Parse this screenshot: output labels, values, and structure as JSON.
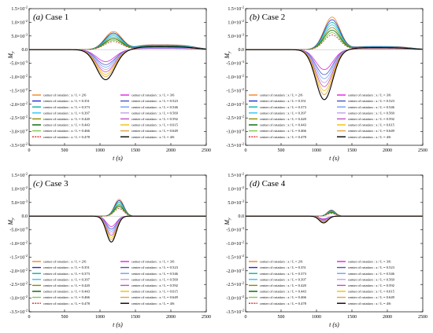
{
  "chart_data": [
    {
      "type": "line",
      "panel": "(a)",
      "title": "Case 1",
      "xlabel": "t (s)",
      "ylabel": "My",
      "xlim": [
        0,
        2500
      ],
      "ylim": [
        -0.035,
        0.015
      ],
      "amp": 0.011,
      "pos_frac": 0.6,
      "tail": 0.0018,
      "peak_t": 1080,
      "width": 130
    },
    {
      "type": "line",
      "panel": "(b)",
      "title": "Case 2",
      "xlabel": "t (s)",
      "ylabel": "My",
      "xlim": [
        0,
        2500
      ],
      "ylim": [
        -0.035,
        0.015
      ],
      "amp": 0.0183,
      "pos_frac": 0.65,
      "tail": 0.0012,
      "peak_t": 1110,
      "width": 120
    },
    {
      "type": "line",
      "panel": "(c)",
      "title": "Case 3",
      "xlabel": "t (s)",
      "ylabel": "My",
      "xlim": [
        0,
        2500
      ],
      "ylim": [
        -0.035,
        0.015
      ],
      "amp": 0.0095,
      "pos_frac": 0.65,
      "tail": 0.0,
      "peak_t": 1160,
      "width": 70
    },
    {
      "type": "line",
      "panel": "(d)",
      "title": "Case 4",
      "xlabel": "t (s)",
      "ylabel": "My",
      "xlim": [
        0,
        2500
      ],
      "ylim": [
        -0.035,
        0.015
      ],
      "amp": 0.0025,
      "pos_frac": 0.9,
      "tail": 0.0,
      "peak_t": 1100,
      "width": 60
    }
  ],
  "x_ticks": [
    0,
    500,
    1000,
    1500,
    2000,
    2500
  ],
  "y_ticks": [
    0.015,
    0.01,
    0.005,
    0,
    -0.005,
    -0.01,
    -0.015,
    -0.02,
    -0.025,
    -0.03,
    -0.035
  ],
  "y_tick_labels": [
    "1.5×10",
    "1.0×10",
    "5.0×10",
    "0.0",
    "-5.0×10",
    "-1.0×10",
    "-1.5×10",
    "-2.0×10",
    "-2.5×10",
    "-3.0×10",
    "-3.5×10"
  ],
  "y_tick_exps": [
    "-2",
    "-2",
    "-3",
    "",
    "-3",
    "-2",
    "-2",
    "-2",
    "-2",
    "-2",
    "-2"
  ],
  "legend_entries": [
    {
      "label": "center of rotation : x / L = 2/6",
      "color": "#f58220",
      "k": 1.0,
      "style": "solid",
      "col": 0
    },
    {
      "label": "center of rotation : x / L = 0.351",
      "color": "#1f2bd1",
      "k": 0.92,
      "style": "solid",
      "col": 0
    },
    {
      "label": "center of rotation : x / L = 0.373",
      "color": "#00b4a0",
      "k": 0.84,
      "style": "solid",
      "col": 0
    },
    {
      "label": "center of rotation : x / L = 0.397",
      "color": "#2ec4f0",
      "k": 0.76,
      "style": "solid",
      "col": 0
    },
    {
      "label": "center of rotation : x / L = 0.420",
      "color": "#8a8a00",
      "k": 0.68,
      "style": "solid",
      "col": 0
    },
    {
      "label": "center of rotation : x / L = 0.443",
      "color": "#006400",
      "k": 0.6,
      "style": "solid",
      "col": 0
    },
    {
      "label": "center of rotation : x / L = 0.466",
      "color": "#7ec850",
      "k": 0.52,
      "style": "solid",
      "col": 0
    },
    {
      "label": "center of rotation : x / L = 0.478",
      "color": "#d62728",
      "k": 0.45,
      "style": "dash",
      "col": 0
    },
    {
      "label": "center of rotation : x / L = 3/6",
      "color": "#e020e0",
      "k": -0.4,
      "style": "solid",
      "col": 1
    },
    {
      "label": "center of rotation : x / L = 0.523",
      "color": "#4a55c8",
      "k": -0.5,
      "style": "solid",
      "col": 1
    },
    {
      "label": "center of rotation : x / L = 0.546",
      "color": "#6aa0f0",
      "k": -0.58,
      "style": "solid",
      "col": 1
    },
    {
      "label": "center of rotation : x / L = 0.569",
      "color": "#c0a0e8",
      "k": -0.66,
      "style": "solid",
      "col": 1
    },
    {
      "label": "center of rotation : x / L = 0.592",
      "color": "#c050c0",
      "k": -0.74,
      "style": "solid",
      "col": 1
    },
    {
      "label": "center of rotation : x / L = 0.615",
      "color": "#f0c000",
      "k": -0.82,
      "style": "solid",
      "col": 1
    },
    {
      "label": "center of rotation : x / L = 0.649",
      "color": "#e0a040",
      "k": -0.9,
      "style": "solid",
      "col": 1
    },
    {
      "label": "center of rotation : x / L = 4/6",
      "color": "#000000",
      "k": -1.0,
      "style": "solid",
      "col": 1
    }
  ]
}
